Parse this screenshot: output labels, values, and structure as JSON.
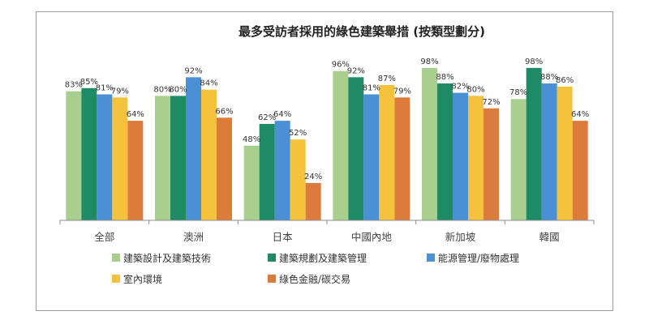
{
  "chart_data": {
    "type": "bar",
    "title": "最多受訪者採用的綠色建築舉措 (按類型劃分)",
    "categories": [
      "全部",
      "澳洲",
      "日本",
      "中國內地",
      "新加坡",
      "韓國"
    ],
    "ylim": [
      0,
      100
    ],
    "grid": false,
    "legend_position": "bottom",
    "value_suffix": "%",
    "series": [
      {
        "name": "建築設計及建築技術",
        "color": "#a9cf8f",
        "values": [
          83,
          80,
          48,
          96,
          98,
          78
        ]
      },
      {
        "name": "建築規劃及建築管理",
        "color": "#1e8a66",
        "values": [
          85,
          80,
          62,
          92,
          88,
          98
        ]
      },
      {
        "name": "能源管理/廢物處理",
        "color": "#4a90d4",
        "values": [
          81,
          92,
          64,
          81,
          82,
          88
        ]
      },
      {
        "name": "室內環境",
        "color": "#f5c33b",
        "values": [
          79,
          84,
          52,
          87,
          80,
          86
        ]
      },
      {
        "name": "綠色金融/碳交易",
        "color": "#dd7b3c",
        "values": [
          64,
          66,
          24,
          79,
          72,
          64
        ]
      }
    ]
  }
}
